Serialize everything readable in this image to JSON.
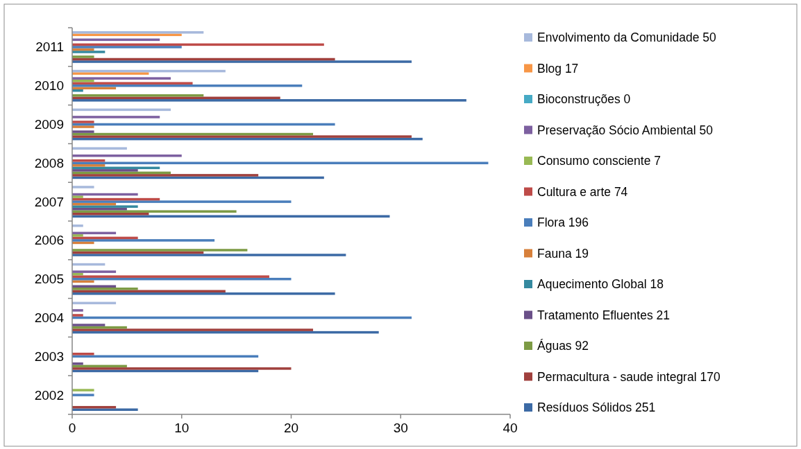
{
  "chart_data": {
    "type": "bar",
    "orientation": "horizontal",
    "categories": [
      "2011",
      "2010",
      "2009",
      "2008",
      "2007",
      "2006",
      "2005",
      "2004",
      "2003",
      "2002"
    ],
    "xlim": [
      0,
      40
    ],
    "xticks": [
      0,
      10,
      20,
      30,
      40
    ],
    "grid": false,
    "legend": "right",
    "series": [
      {
        "name": "Resíduos Sólidos 251",
        "color": "#3c6aa5",
        "values": [
          31,
          36,
          32,
          23,
          29,
          25,
          24,
          28,
          17,
          6
        ]
      },
      {
        "name": "Permacultura - saude integral 170",
        "color": "#a0403d",
        "values": [
          24,
          19,
          31,
          17,
          7,
          12,
          14,
          22,
          20,
          4
        ]
      },
      {
        "name": "Águas 92",
        "color": "#7d9b45",
        "values": [
          2,
          12,
          22,
          9,
          15,
          16,
          6,
          5,
          5,
          0
        ]
      },
      {
        "name": "Tratamento Efluentes 21",
        "color": "#6a5088",
        "values": [
          0,
          0,
          2,
          6,
          5,
          0,
          4,
          3,
          1,
          0
        ]
      },
      {
        "name": "Aquecimento Global 18",
        "color": "#35899f",
        "values": [
          3,
          1,
          0,
          8,
          6,
          0,
          0,
          0,
          0,
          0
        ]
      },
      {
        "name": "Fauna 19",
        "color": "#d7803b",
        "values": [
          2,
          4,
          2,
          3,
          4,
          2,
          2,
          0,
          0,
          0
        ]
      },
      {
        "name": "Flora 196",
        "color": "#4a7ebb",
        "values": [
          10,
          21,
          24,
          38,
          20,
          13,
          20,
          31,
          17,
          2
        ]
      },
      {
        "name": "Cultura e arte 74",
        "color": "#be4b48",
        "values": [
          23,
          11,
          2,
          3,
          8,
          6,
          18,
          1,
          2,
          0
        ]
      },
      {
        "name": "Consumo consciente 7",
        "color": "#98b954",
        "values": [
          0,
          2,
          0,
          0,
          1,
          1,
          1,
          0,
          0,
          2
        ]
      },
      {
        "name": "Preservação Sócio Ambiental 50",
        "color": "#7d60a0",
        "values": [
          8,
          9,
          8,
          10,
          6,
          4,
          4,
          1,
          0,
          0
        ]
      },
      {
        "name": "Bioconstruções 0",
        "color": "#46aac5",
        "values": [
          0,
          0,
          0,
          0,
          0,
          0,
          0,
          0,
          0,
          0
        ]
      },
      {
        "name": "Blog 17",
        "color": "#f79646",
        "values": [
          10,
          7,
          0,
          0,
          0,
          0,
          0,
          0,
          0,
          0
        ]
      },
      {
        "name": "Envolvimento da Comunidade 50",
        "color": "#a7b9dc",
        "values": [
          12,
          14,
          9,
          5,
          2,
          1,
          3,
          4,
          0,
          0
        ]
      }
    ]
  }
}
